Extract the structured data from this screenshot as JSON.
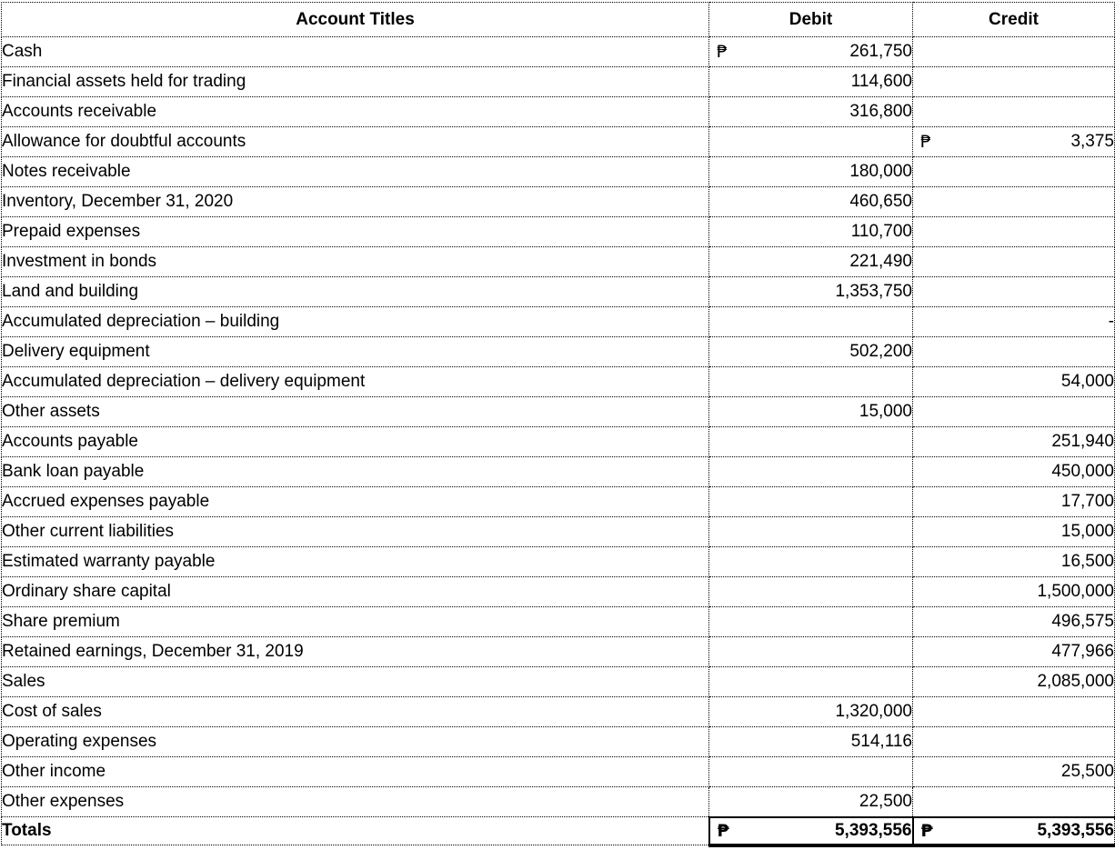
{
  "table": {
    "currency_symbol": "₱",
    "columns": [
      "Account Titles",
      "Debit",
      "Credit"
    ],
    "rows": [
      {
        "title": "Cash",
        "debit": "261,750",
        "credit": "",
        "debit_peso": true,
        "credit_peso": false
      },
      {
        "title": "Financial assets held for trading",
        "debit": "114,600",
        "credit": "",
        "debit_peso": false,
        "credit_peso": false
      },
      {
        "title": "Accounts receivable",
        "debit": "316,800",
        "credit": "",
        "debit_peso": false,
        "credit_peso": false
      },
      {
        "title": "Allowance for doubtful accounts",
        "debit": "",
        "credit": "3,375",
        "debit_peso": false,
        "credit_peso": true
      },
      {
        "title": "Notes receivable",
        "debit": "180,000",
        "credit": "",
        "debit_peso": false,
        "credit_peso": false
      },
      {
        "title": "Inventory, December 31, 2020",
        "debit": "460,650",
        "credit": "",
        "debit_peso": false,
        "credit_peso": false
      },
      {
        "title": "Prepaid expenses",
        "debit": "110,700",
        "credit": "",
        "debit_peso": false,
        "credit_peso": false
      },
      {
        "title": "Investment in bonds",
        "debit": "221,490",
        "credit": "",
        "debit_peso": false,
        "credit_peso": false
      },
      {
        "title": "Land and building",
        "debit": "1,353,750",
        "credit": "",
        "debit_peso": false,
        "credit_peso": false
      },
      {
        "title": "Accumulated depreciation – building",
        "debit": "",
        "credit": "-",
        "debit_peso": false,
        "credit_peso": false
      },
      {
        "title": "Delivery equipment",
        "debit": "502,200",
        "credit": "",
        "debit_peso": false,
        "credit_peso": false
      },
      {
        "title": "Accumulated depreciation – delivery equipment",
        "debit": "",
        "credit": "54,000",
        "debit_peso": false,
        "credit_peso": false
      },
      {
        "title": "Other assets",
        "debit": "15,000",
        "credit": "",
        "debit_peso": false,
        "credit_peso": false
      },
      {
        "title": "Accounts payable",
        "debit": "",
        "credit": "251,940",
        "debit_peso": false,
        "credit_peso": false
      },
      {
        "title": "Bank loan payable",
        "debit": "",
        "credit": "450,000",
        "debit_peso": false,
        "credit_peso": false
      },
      {
        "title": "Accrued expenses payable",
        "debit": "",
        "credit": "17,700",
        "debit_peso": false,
        "credit_peso": false
      },
      {
        "title": "Other current liabilities",
        "debit": "",
        "credit": "15,000",
        "debit_peso": false,
        "credit_peso": false
      },
      {
        "title": "Estimated warranty payable",
        "debit": "",
        "credit": "16,500",
        "debit_peso": false,
        "credit_peso": false
      },
      {
        "title": "Ordinary share capital",
        "debit": "",
        "credit": "1,500,000",
        "debit_peso": false,
        "credit_peso": false
      },
      {
        "title": "Share premium",
        "debit": "",
        "credit": "496,575",
        "debit_peso": false,
        "credit_peso": false
      },
      {
        "title": "Retained earnings, December 31, 2019",
        "debit": "",
        "credit": "477,966",
        "debit_peso": false,
        "credit_peso": false
      },
      {
        "title": "Sales",
        "debit": "",
        "credit": "2,085,000",
        "debit_peso": false,
        "credit_peso": false
      },
      {
        "title": "Cost of sales",
        "debit": "1,320,000",
        "credit": "",
        "debit_peso": false,
        "credit_peso": false
      },
      {
        "title": "Operating expenses",
        "debit": "514,116",
        "credit": "",
        "debit_peso": false,
        "credit_peso": false
      },
      {
        "title": "Other income",
        "debit": "",
        "credit": "25,500",
        "debit_peso": false,
        "credit_peso": false
      },
      {
        "title": "Other expenses",
        "debit": "22,500",
        "credit": "",
        "debit_peso": false,
        "credit_peso": false
      }
    ],
    "totals": {
      "title": "Totals",
      "debit": "5,393,556",
      "credit": "5,393,556",
      "debit_peso": true,
      "credit_peso": true
    }
  }
}
